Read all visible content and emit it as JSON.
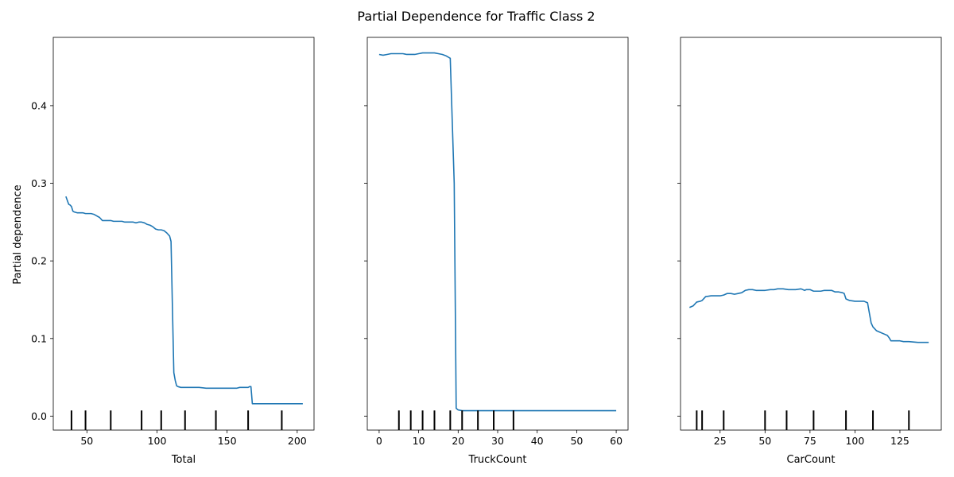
{
  "chart_data": {
    "type": "line",
    "title": "Partial Dependence for Traffic Class 2",
    "ylabel": "Partial dependence",
    "ylim": [
      -0.018,
      0.488
    ],
    "yticks": [
      0.0,
      0.1,
      0.2,
      0.3,
      0.4
    ],
    "yticklabels": [
      "0.0",
      "0.1",
      "0.2",
      "0.3",
      "0.4"
    ],
    "line_color": "#1f77b4",
    "rug_color": "#000000",
    "subplots": [
      {
        "xlabel": "Total",
        "xlim": [
          26,
          212
        ],
        "xticks": [
          50,
          100,
          150,
          200
        ],
        "xticklabels": [
          "50",
          "100",
          "150",
          "200"
        ],
        "deciles": [
          39,
          49,
          67,
          89,
          103,
          120,
          142,
          165,
          189
        ],
        "x": [
          35,
          36,
          37,
          38,
          39,
          40,
          41,
          43,
          45,
          47,
          49,
          51,
          53,
          55,
          57,
          59,
          61,
          63,
          65,
          67,
          69,
          71,
          73,
          75,
          77,
          79,
          81,
          83,
          85,
          87,
          89,
          91,
          93,
          95,
          97,
          99,
          101,
          103,
          105,
          107,
          109,
          110,
          111,
          112,
          113,
          114,
          115,
          117,
          119,
          121,
          125,
          130,
          135,
          140,
          145,
          150,
          155,
          157,
          159,
          161,
          163,
          165,
          166,
          167,
          168,
          170,
          175,
          180,
          185,
          190,
          195,
          200,
          204
        ],
        "y": [
          0.283,
          0.278,
          0.273,
          0.272,
          0.27,
          0.264,
          0.263,
          0.262,
          0.262,
          0.262,
          0.261,
          0.261,
          0.261,
          0.26,
          0.258,
          0.256,
          0.252,
          0.252,
          0.252,
          0.252,
          0.251,
          0.251,
          0.251,
          0.251,
          0.25,
          0.25,
          0.25,
          0.25,
          0.249,
          0.25,
          0.25,
          0.249,
          0.247,
          0.246,
          0.244,
          0.241,
          0.24,
          0.24,
          0.239,
          0.236,
          0.232,
          0.225,
          0.14,
          0.056,
          0.046,
          0.039,
          0.038,
          0.037,
          0.037,
          0.037,
          0.037,
          0.037,
          0.036,
          0.036,
          0.036,
          0.036,
          0.036,
          0.036,
          0.037,
          0.037,
          0.037,
          0.037,
          0.038,
          0.038,
          0.016,
          0.016,
          0.016,
          0.016,
          0.016,
          0.016,
          0.016,
          0.016,
          0.016
        ]
      },
      {
        "xlabel": "TruckCount",
        "xlim": [
          -3,
          63
        ],
        "xticks": [
          0,
          10,
          20,
          30,
          40,
          50,
          60
        ],
        "xticklabels": [
          "0",
          "10",
          "20",
          "30",
          "40",
          "50",
          "60"
        ],
        "deciles": [
          5,
          8,
          11,
          14,
          18,
          21,
          25,
          29,
          34
        ],
        "x": [
          0,
          1,
          2,
          3,
          4,
          5,
          6,
          7,
          8,
          9,
          10,
          11,
          12,
          13,
          14,
          15,
          16,
          17,
          18,
          19,
          19.5,
          20,
          21,
          22,
          23,
          25,
          27,
          29,
          30,
          35,
          40,
          45,
          50,
          55,
          60
        ],
        "y": [
          0.466,
          0.465,
          0.466,
          0.467,
          0.467,
          0.467,
          0.467,
          0.466,
          0.466,
          0.466,
          0.467,
          0.468,
          0.468,
          0.468,
          0.468,
          0.467,
          0.466,
          0.464,
          0.461,
          0.3,
          0.01,
          0.008,
          0.007,
          0.007,
          0.007,
          0.007,
          0.007,
          0.007,
          0.007,
          0.007,
          0.007,
          0.007,
          0.007,
          0.007,
          0.007
        ]
      },
      {
        "xlabel": "CarCount",
        "xlim": [
          3,
          148
        ],
        "xticks": [
          25,
          50,
          75,
          100,
          125
        ],
        "xticklabels": [
          "25",
          "50",
          "75",
          "100",
          "125"
        ],
        "deciles": [
          12,
          15,
          27,
          50,
          62,
          77,
          95,
          110,
          130
        ],
        "x": [
          8,
          10,
          12,
          14,
          15,
          17,
          20,
          23,
          25,
          27,
          29,
          31,
          33,
          35,
          37,
          39,
          41,
          43,
          45,
          47,
          50,
          53,
          55,
          57,
          60,
          63,
          65,
          67,
          70,
          72,
          73,
          75,
          77,
          79,
          81,
          83,
          85,
          87,
          89,
          91,
          93,
          94,
          95,
          96,
          97,
          100,
          103,
          105,
          106,
          107,
          108,
          109,
          110,
          112,
          114,
          116,
          118,
          119,
          120,
          125,
          127,
          130,
          135,
          141
        ],
        "y": [
          0.14,
          0.142,
          0.147,
          0.148,
          0.149,
          0.154,
          0.155,
          0.155,
          0.155,
          0.156,
          0.158,
          0.158,
          0.157,
          0.158,
          0.159,
          0.162,
          0.163,
          0.163,
          0.162,
          0.162,
          0.162,
          0.163,
          0.163,
          0.164,
          0.164,
          0.163,
          0.163,
          0.163,
          0.164,
          0.162,
          0.163,
          0.163,
          0.161,
          0.161,
          0.161,
          0.162,
          0.162,
          0.162,
          0.16,
          0.16,
          0.159,
          0.158,
          0.151,
          0.15,
          0.149,
          0.148,
          0.148,
          0.148,
          0.147,
          0.146,
          0.133,
          0.12,
          0.115,
          0.11,
          0.108,
          0.106,
          0.104,
          0.101,
          0.097,
          0.097,
          0.096,
          0.096,
          0.095,
          0.095
        ]
      }
    ]
  }
}
